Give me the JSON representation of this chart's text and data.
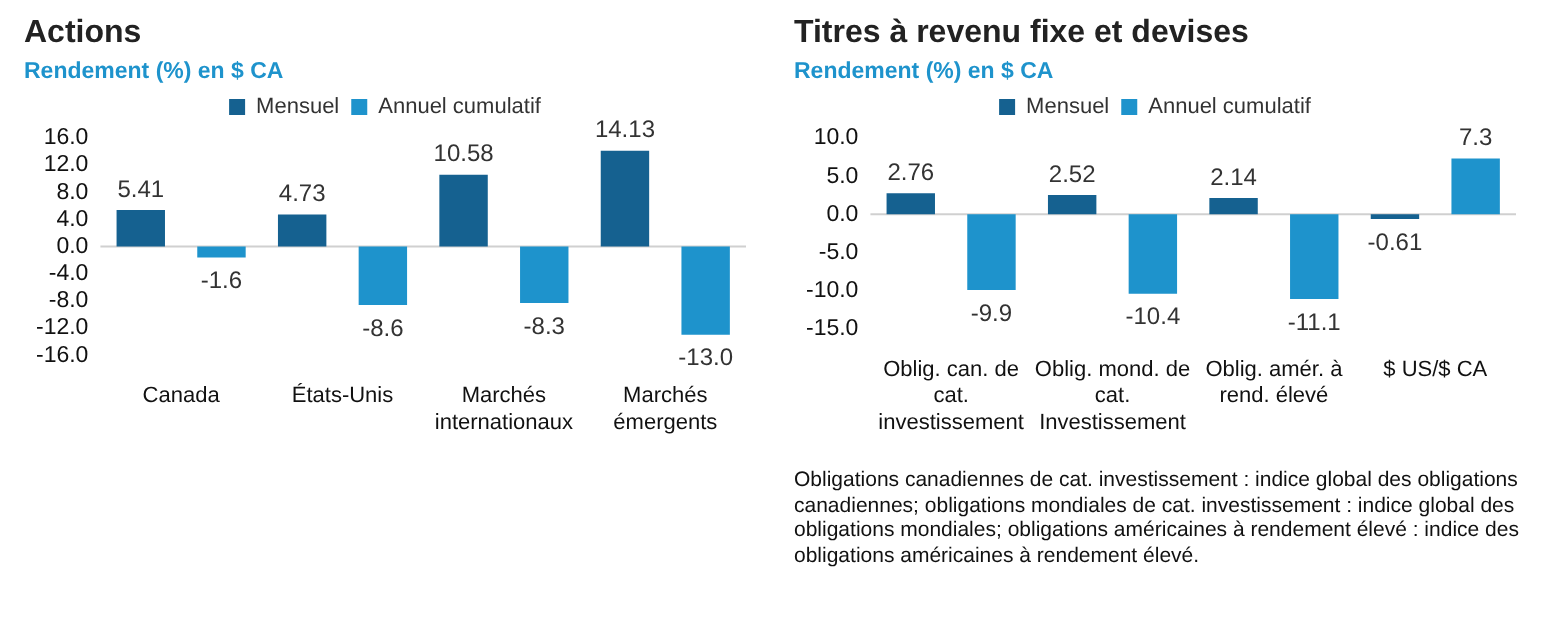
{
  "chart_data": [
    {
      "type": "bar",
      "title": "Actions",
      "subtitle": "Rendement (%) en $ CA",
      "categories": [
        "Canada",
        "États-Unis",
        "Marchés internationaux",
        "Marchés émergents"
      ],
      "series": [
        {
          "name": "Mensuel",
          "color": "#156190",
          "values": [
            5.41,
            4.73,
            10.58,
            14.13
          ],
          "value_labels": [
            "5.41",
            "4.73",
            "10.58",
            "14.13"
          ]
        },
        {
          "name": "Annuel cumulatif",
          "color": "#1e93cc",
          "values": [
            -1.6,
            -8.6,
            -8.3,
            -13.0
          ],
          "value_labels": [
            "-1.6",
            "-8.6",
            "-8.3",
            "-13.0"
          ]
        }
      ],
      "ylim": [
        -16,
        16
      ],
      "yticks": [
        {
          "value": -16,
          "label": "-16.0"
        },
        {
          "value": -12,
          "label": "-12.0"
        },
        {
          "value": -8,
          "label": "-8.0"
        },
        {
          "value": -4,
          "label": "-4.0"
        },
        {
          "value": 0,
          "label": "0.0"
        },
        {
          "value": 4,
          "label": "4.0"
        },
        {
          "value": 8,
          "label": "8.0"
        },
        {
          "value": 12,
          "label": "12.0"
        },
        {
          "value": 16,
          "label": "16.0"
        }
      ],
      "grid": false,
      "legend": "top",
      "ref_lines": [
        {
          "axis": "y",
          "value": 0
        }
      ]
    },
    {
      "type": "bar",
      "title": "Titres à revenu fixe et devises",
      "subtitle": "Rendement (%) en $ CA",
      "categories": [
        "Oblig. can. de cat. investissement",
        "Oblig. mond. de cat. Investissement",
        "Oblig. amér. à rend. élevé",
        "$ US/$ CA"
      ],
      "series": [
        {
          "name": "Mensuel",
          "color": "#156190",
          "values": [
            2.76,
            2.52,
            2.14,
            -0.61
          ],
          "value_labels": [
            "2.76",
            "2.52",
            "2.14",
            "-0.61"
          ]
        },
        {
          "name": "Annuel cumulatif",
          "color": "#1e93cc",
          "values": [
            -9.9,
            -10.4,
            -11.1,
            7.3
          ],
          "value_labels": [
            "-9.9",
            "-10.4",
            "-11.1",
            "7.3"
          ]
        }
      ],
      "ylim": [
        -15,
        10
      ],
      "yticks": [
        {
          "value": -15,
          "label": "-15.0"
        },
        {
          "value": -10,
          "label": "-10.0"
        },
        {
          "value": -5,
          "label": "-5.0"
        },
        {
          "value": 0,
          "label": "0.0"
        },
        {
          "value": 5,
          "label": "5.0"
        },
        {
          "value": 10,
          "label": "10.0"
        }
      ],
      "grid": false,
      "legend": "top",
      "ref_lines": [
        {
          "axis": "y",
          "value": 0
        }
      ],
      "annotations": [
        "Obligations canadiennes de cat. investissement : indice global des obligations canadiennes; obligations mondiales de cat. investissement : indice global des obligations mondiales; obligations américaines à rendement élevé : indice des obligations américaines à rendement élevé."
      ]
    }
  ]
}
